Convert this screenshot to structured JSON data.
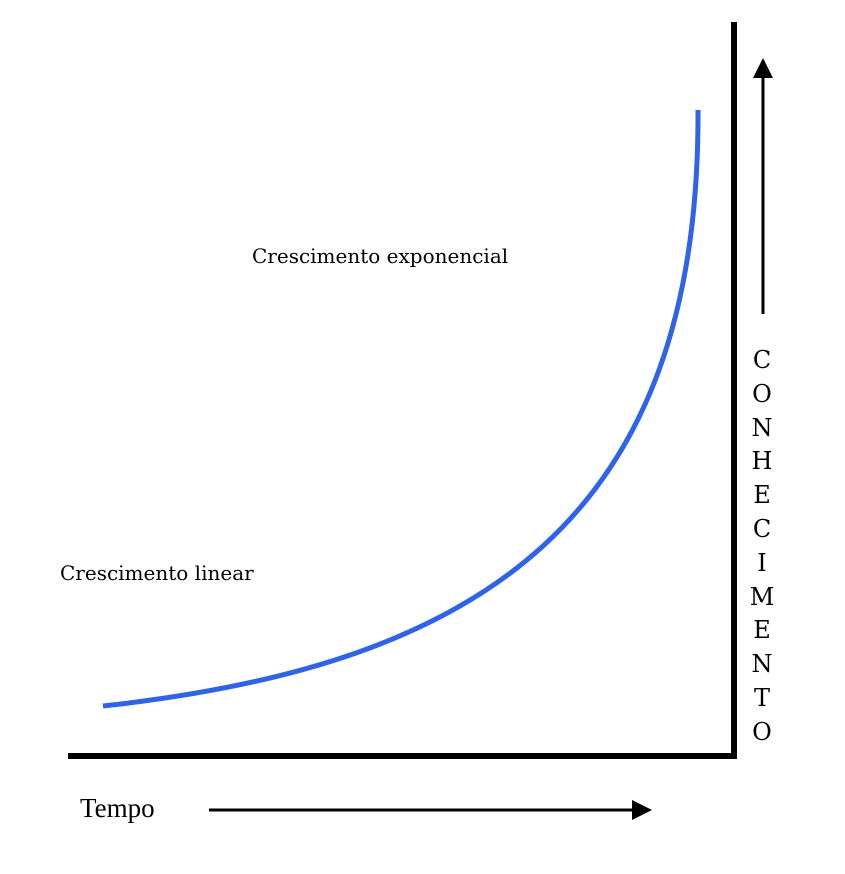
{
  "labels": {
    "exponential": "Crescimento exponencial",
    "linear": "Crescimento linear"
  },
  "axes": {
    "x_label": "Tempo",
    "y_label": "CONHECIMENTO"
  },
  "colors": {
    "curve": "#2f63e8",
    "axis": "#000000",
    "text": "#000000",
    "background": "#ffffff"
  }
}
